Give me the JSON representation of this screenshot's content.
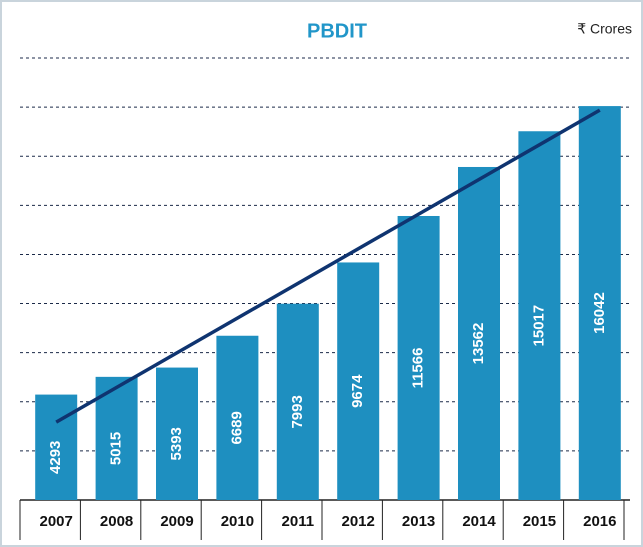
{
  "chart_data": {
    "type": "bar",
    "title": "PBDIT",
    "unit_label": "₹ Crores",
    "categories": [
      "2007",
      "2008",
      "2009",
      "2010",
      "2011",
      "2012",
      "2013",
      "2014",
      "2015",
      "2016"
    ],
    "values": [
      4293,
      5015,
      5393,
      6689,
      7993,
      9674,
      11566,
      13562,
      15017,
      16042
    ],
    "color": "#1e8fc0",
    "trendline": true,
    "trendline_color": "#0f3470",
    "ylim": [
      0,
      18000
    ],
    "yticks": [
      2000,
      4000,
      6000,
      8000,
      10000,
      12000,
      14000,
      16000,
      18000
    ],
    "grid": true
  }
}
